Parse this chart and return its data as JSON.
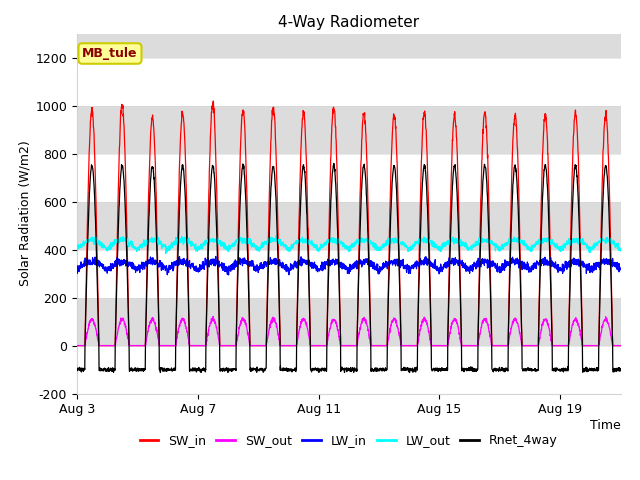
{
  "title": "4-Way Radiometer",
  "xlabel": "Time",
  "ylabel": "Solar Radiation (W/m2)",
  "ylim": [
    -200,
    1300
  ],
  "yticks": [
    -200,
    0,
    200,
    400,
    600,
    800,
    1000,
    1200
  ],
  "x_tick_labels": [
    "Aug 3",
    "Aug 7",
    "Aug 11",
    "Aug 15",
    "Aug 19"
  ],
  "xtick_positions": [
    0,
    4,
    8,
    12,
    16
  ],
  "annotation_label": "MB_tule",
  "plot_bg_color": "#dcdcdc",
  "sw_in_color": "#ff0000",
  "sw_out_color": "#ff00ff",
  "lw_in_color": "#0000ff",
  "lw_out_color": "#00ffff",
  "rnet_color": "#000000",
  "n_days": 18,
  "samples_per_day": 144,
  "legend_labels": [
    "SW_in",
    "SW_out",
    "LW_in",
    "LW_out",
    "Rnet_4way"
  ]
}
